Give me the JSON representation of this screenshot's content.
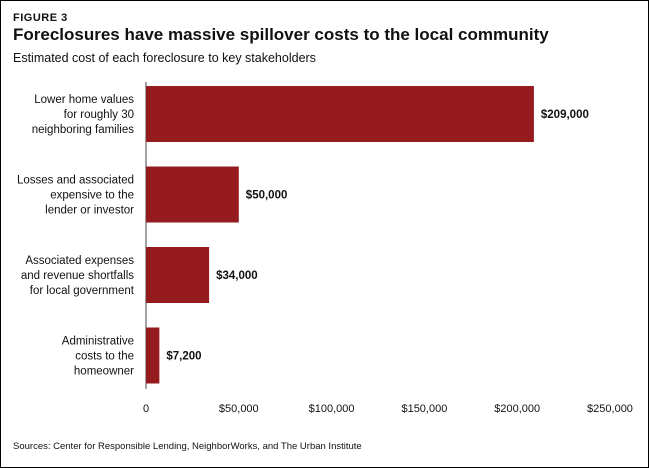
{
  "figure_label": "FIGURE 3",
  "title": "Foreclosures have massive spillover costs to the local community",
  "subtitle": "Estimated cost of each foreclosure to key stakeholders",
  "source": "Sources: Center for Responsible Lending, NeighborWorks, and The Urban Institute",
  "colors": {
    "bar": "#951b1e"
  },
  "chart_data": {
    "type": "bar",
    "orientation": "horizontal",
    "categories": [
      [
        "Lower home values",
        "for roughly 30",
        "neighboring families"
      ],
      [
        "Losses and associated",
        "expensive to the",
        "lender or investor"
      ],
      [
        "Associated expenses",
        "and revenue shortfalls",
        "for local government"
      ],
      [
        "Administrative",
        "costs to the",
        "homeowner"
      ]
    ],
    "values": [
      209000,
      50000,
      34000,
      7200
    ],
    "value_labels": [
      "$209,000",
      "$50,000",
      "$34,000",
      "$7,200"
    ],
    "xlim": [
      0,
      250000
    ],
    "xticks": [
      0,
      50000,
      100000,
      150000,
      200000,
      250000
    ],
    "xtick_labels": [
      "0",
      "$50,000",
      "$100,000",
      "$150,000",
      "$200,000",
      "$250,000"
    ],
    "grid": false,
    "legend": "none"
  }
}
